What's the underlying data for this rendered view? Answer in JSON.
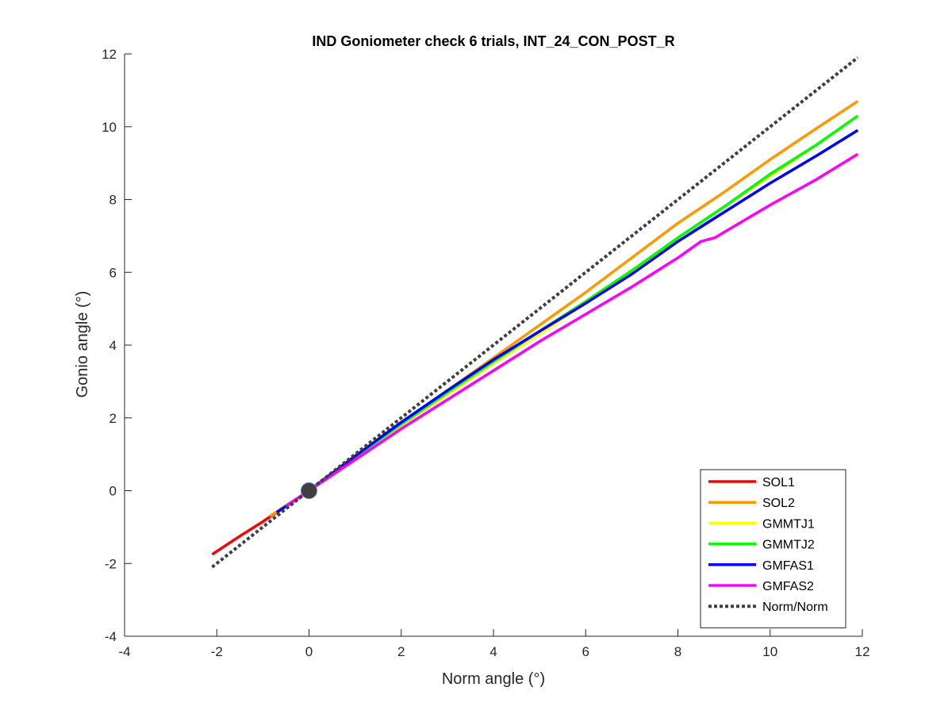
{
  "chart_data": {
    "type": "line",
    "title": "IND Goniometer check 6 trials, INT_24_CON_POST_R",
    "xlabel": "Norm angle (°)",
    "ylabel": "Gonio angle (°)",
    "xlim": [
      -4,
      12
    ],
    "ylim": [
      -4,
      12
    ],
    "xticks": [
      "-4",
      "-2",
      "0",
      "2",
      "4",
      "6",
      "8",
      "10",
      "12"
    ],
    "yticks": [
      "-4",
      "-2",
      "0",
      "2",
      "4",
      "6",
      "8",
      "10",
      "12"
    ],
    "grid": false,
    "legend_position": "bottom-right",
    "origin_marker": {
      "x": 0,
      "y": 0,
      "color": "#404040"
    },
    "series": [
      {
        "name": "SOL1",
        "color": "#ff0000",
        "style": "solid",
        "x": [
          -2.1,
          -1.5,
          -1.0,
          -0.5,
          0
        ],
        "y": [
          -1.75,
          -1.25,
          -0.85,
          -0.42,
          0
        ]
      },
      {
        "name": "SOL2",
        "color": "#ff9900",
        "style": "solid",
        "x": [
          -0.85,
          -0.4,
          0,
          1,
          2,
          3,
          4,
          5,
          6,
          7,
          8,
          9,
          10,
          11,
          11.9
        ],
        "y": [
          -0.7,
          -0.33,
          0,
          0.95,
          1.85,
          2.75,
          3.65,
          4.55,
          5.45,
          6.4,
          7.35,
          8.2,
          9.1,
          9.95,
          10.7
        ]
      },
      {
        "name": "GMMTJ1",
        "color": "#ffff00",
        "style": "solid",
        "x": [
          -0.6,
          0,
          1,
          2,
          3,
          4,
          5,
          6,
          7,
          8,
          9,
          10,
          11,
          11.9
        ],
        "y": [
          -0.5,
          0,
          0.9,
          1.8,
          2.65,
          3.5,
          4.3,
          5.15,
          6.0,
          6.95,
          7.8,
          8.65,
          9.5,
          10.3
        ]
      },
      {
        "name": "GMMTJ2",
        "color": "#00ff00",
        "style": "solid",
        "x": [
          -0.6,
          0,
          1,
          2,
          3,
          4,
          5,
          6,
          7,
          8,
          9,
          10,
          11,
          11.9
        ],
        "y": [
          -0.5,
          0,
          0.92,
          1.83,
          2.7,
          3.55,
          4.38,
          5.2,
          6.05,
          6.95,
          7.8,
          8.7,
          9.5,
          10.3
        ]
      },
      {
        "name": "GMFAS1",
        "color": "#0000ff",
        "style": "solid",
        "x": [
          -0.7,
          0,
          1,
          2,
          3,
          4,
          5,
          6,
          7,
          8,
          9,
          10,
          11,
          11.9
        ],
        "y": [
          -0.6,
          0,
          0.95,
          1.88,
          2.75,
          3.6,
          4.38,
          5.15,
          5.95,
          6.85,
          7.65,
          8.45,
          9.2,
          9.9
        ]
      },
      {
        "name": "GMFAS2",
        "color": "#ff00ff",
        "style": "solid",
        "x": [
          -0.5,
          0,
          1,
          2,
          3,
          4,
          5,
          6,
          7,
          8,
          8.5,
          8.8,
          9,
          10,
          11,
          11.9
        ],
        "y": [
          -0.42,
          0,
          0.85,
          1.7,
          2.5,
          3.3,
          4.1,
          4.85,
          5.6,
          6.4,
          6.85,
          6.95,
          7.1,
          7.85,
          8.55,
          9.25
        ]
      },
      {
        "name": "Norm/Norm",
        "color": "#404040",
        "style": "dotted",
        "x": [
          -2.1,
          11.9
        ],
        "y": [
          -2.1,
          11.9
        ]
      }
    ]
  }
}
